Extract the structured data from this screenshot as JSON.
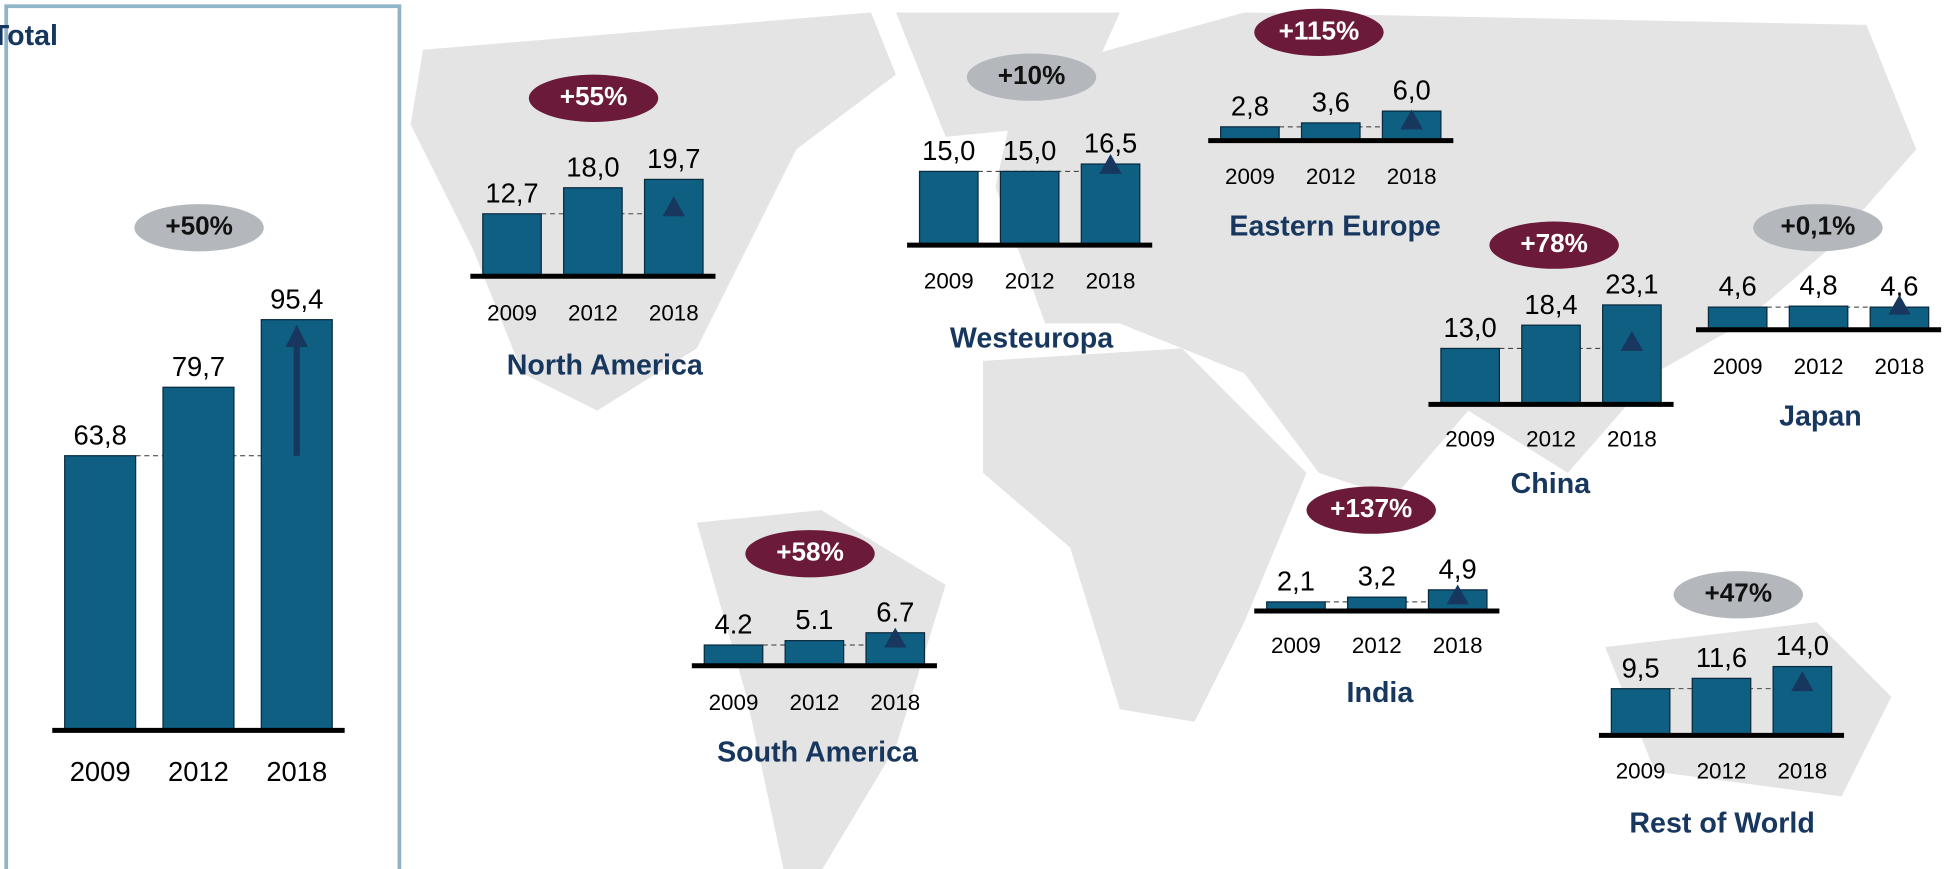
{
  "chart_data": [
    {
      "type": "bar",
      "title": "Total",
      "annotation": "+50%",
      "badge_color": "#b4b8bd",
      "color": "#0e5f82",
      "categories": [
        "2009",
        "2012",
        "2018"
      ],
      "values": [
        63.8,
        79.7,
        95.4
      ],
      "value_labels": [
        "63,8",
        "79,7",
        "95,4"
      ]
    },
    {
      "type": "bar",
      "title": "North America",
      "annotation": "+55%",
      "badge_color": "#6b1a3a",
      "color": "#0e5f82",
      "categories": [
        "2009",
        "2012",
        "2018"
      ],
      "values": [
        12.7,
        18.0,
        19.7
      ],
      "value_labels": [
        "12,7",
        "18,0",
        "19,7"
      ]
    },
    {
      "type": "bar",
      "title": "Westeuropa",
      "annotation": "+10%",
      "badge_color": "#b4b8bd",
      "color": "#0e5f82",
      "categories": [
        "2009",
        "2012",
        "2018"
      ],
      "values": [
        15.0,
        15.0,
        16.5
      ],
      "value_labels": [
        "15,0",
        "15,0",
        "16,5"
      ]
    },
    {
      "type": "bar",
      "title": "Eastern Europe",
      "annotation": "+115%",
      "badge_color": "#6b1a3a",
      "color": "#0e5f82",
      "categories": [
        "2009",
        "2012",
        "2018"
      ],
      "values": [
        2.8,
        3.6,
        6.0
      ],
      "value_labels": [
        "2,8",
        "3,6",
        "6,0"
      ]
    },
    {
      "type": "bar",
      "title": "China",
      "annotation": "+78%",
      "badge_color": "#6b1a3a",
      "color": "#0e5f82",
      "categories": [
        "2009",
        "2012",
        "2018"
      ],
      "values": [
        13.0,
        18.4,
        23.1
      ],
      "value_labels": [
        "13,0",
        "18,4",
        "23,1"
      ]
    },
    {
      "type": "bar",
      "title": "Japan",
      "annotation": "+0,1%",
      "badge_color": "#b4b8bd",
      "color": "#0e5f82",
      "categories": [
        "2009",
        "2012",
        "2018"
      ],
      "values": [
        4.6,
        4.8,
        4.6
      ],
      "value_labels": [
        "4,6",
        "4,8",
        "4,6"
      ]
    },
    {
      "type": "bar",
      "title": "India",
      "annotation": "+137%",
      "badge_color": "#6b1a3a",
      "color": "#0e5f82",
      "categories": [
        "2009",
        "2012",
        "2018"
      ],
      "values": [
        2.1,
        3.2,
        4.9
      ],
      "value_labels": [
        "2,1",
        "3,2",
        "4,9"
      ]
    },
    {
      "type": "bar",
      "title": "South America",
      "annotation": "+58%",
      "badge_color": "#6b1a3a",
      "color": "#0e5f82",
      "categories": [
        "2009",
        "2012",
        "2018"
      ],
      "values": [
        4.2,
        5.1,
        6.7
      ]
    },
    {
      "type": "bar",
      "title": "Rest of World",
      "annotation": "+47%",
      "badge_color": "#b4b8bd",
      "color": "#0e5f82",
      "categories": [
        "2009",
        "2012",
        "2018"
      ],
      "values": [
        9.5,
        11.6,
        14.0
      ],
      "value_labels": [
        "9,5",
        "11,6",
        "14,0"
      ]
    }
  ]
}
